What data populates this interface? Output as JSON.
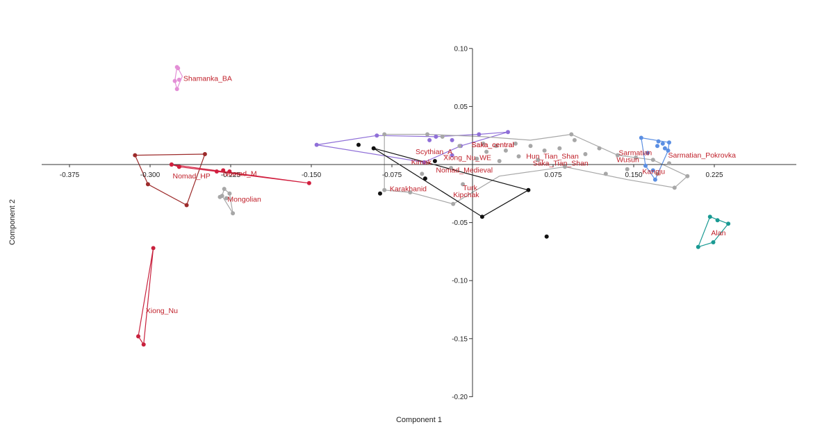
{
  "chart_data": {
    "type": "scatter",
    "xlabel": "Component 1",
    "ylabel": "Component 2",
    "xlim": [
      -0.39,
      0.3
    ],
    "ylim": [
      -0.205,
      0.105
    ],
    "x_ticks": [
      -0.375,
      -0.3,
      -0.225,
      -0.15,
      -0.075,
      0.075,
      0.15,
      0.225
    ],
    "x_tick_labels": [
      "-0.375",
      "-0.300",
      "-0.225",
      "-0.150",
      "-0.075",
      "0.075",
      "0.150",
      "0.225"
    ],
    "y_ticks": [
      0.1,
      0.05,
      -0.05,
      -0.1,
      -0.15,
      -0.2
    ],
    "y_tick_labels": [
      "0.10",
      "0.05",
      "-0.05",
      "-0.10",
      "-0.15",
      "-0.20"
    ],
    "grid": false,
    "legend": "none",
    "groups": [
      {
        "name": "Shamanka_BA",
        "color": "#e38fd6",
        "points": [
          [
            -0.275,
            0.084
          ],
          [
            -0.274,
            0.083
          ],
          [
            -0.277,
            0.072
          ],
          [
            -0.273,
            0.073
          ],
          [
            -0.275,
            0.065
          ]
        ],
        "hull": [
          [
            -0.275,
            0.084
          ],
          [
            -0.274,
            0.083
          ],
          [
            -0.27,
            0.076
          ],
          [
            -0.275,
            0.065
          ],
          [
            -0.277,
            0.072
          ]
        ],
        "label_pos": [
          -0.269,
          0.072
        ]
      },
      {
        "name": "Nomad_HP",
        "color": "#9c2a2a",
        "points": [
          [
            -0.314,
            0.008
          ],
          [
            -0.249,
            0.009
          ],
          [
            -0.302,
            -0.017
          ],
          [
            -0.266,
            -0.035
          ],
          [
            -0.28,
            0.0
          ],
          [
            -0.273,
            -0.002
          ]
        ],
        "hull": [
          [
            -0.314,
            0.008
          ],
          [
            -0.249,
            0.009
          ],
          [
            -0.266,
            -0.035
          ],
          [
            -0.302,
            -0.017
          ]
        ],
        "label_pos": [
          -0.279,
          -0.012
        ]
      },
      {
        "name": "Nomad_M",
        "color": "#d11f3f",
        "points": [
          [
            -0.28,
            0.0
          ],
          [
            -0.273,
            -0.002
          ],
          [
            -0.238,
            -0.006
          ],
          [
            -0.232,
            -0.005
          ],
          [
            -0.152,
            -0.016
          ],
          [
            -0.226,
            -0.006
          ]
        ],
        "hull": [
          [
            -0.28,
            0.0
          ],
          [
            -0.152,
            -0.016
          ],
          [
            -0.238,
            -0.006
          ],
          [
            -0.273,
            -0.002
          ]
        ],
        "label_pos": [
          -0.232,
          -0.01
        ]
      },
      {
        "name": "Mongolian",
        "color": "#a7a7a7",
        "points": [
          [
            -0.231,
            -0.021
          ],
          [
            -0.226,
            -0.025
          ],
          [
            -0.233,
            -0.027
          ],
          [
            -0.223,
            -0.042
          ],
          [
            -0.229,
            -0.029
          ],
          [
            -0.235,
            -0.028
          ]
        ],
        "hull": [
          [
            -0.231,
            -0.021
          ],
          [
            -0.226,
            -0.025
          ],
          [
            -0.223,
            -0.042
          ],
          [
            -0.233,
            -0.027
          ]
        ],
        "label_pos": [
          -0.228,
          -0.032
        ]
      },
      {
        "name": "Xiong_Nu",
        "color": "#c8213d",
        "points": [
          [
            -0.297,
            -0.072
          ],
          [
            -0.311,
            -0.148
          ],
          [
            -0.306,
            -0.155
          ]
        ],
        "hull": [
          [
            -0.297,
            -0.072
          ],
          [
            -0.306,
            -0.155
          ],
          [
            -0.311,
            -0.148
          ]
        ],
        "label_pos": [
          -0.304,
          -0.128
        ]
      },
      {
        "name": "Scythian_A",
        "color": "#8f6fd8",
        "points": [
          [
            -0.145,
            0.017
          ],
          [
            -0.089,
            0.025
          ],
          [
            -0.034,
            0.024
          ],
          [
            -0.019,
            0.021
          ],
          [
            0.006,
            0.026
          ],
          [
            0.033,
            0.028
          ],
          [
            -0.011,
            0.016
          ],
          [
            -0.04,
            0.021
          ],
          [
            -0.019,
            0.008
          ],
          [
            -0.045,
            0.002
          ]
        ],
        "hull": [
          [
            -0.145,
            0.017
          ],
          [
            -0.089,
            0.025
          ],
          [
            -0.034,
            0.024
          ],
          [
            0.006,
            0.026
          ],
          [
            0.033,
            0.028
          ],
          [
            -0.011,
            0.016
          ],
          [
            -0.045,
            0.002
          ]
        ],
        "label_pos": [
          -0.053,
          0.009
        ]
      },
      {
        "name": "Saka_central",
        "color": "#a7a7a7",
        "points": [
          [
            -0.082,
            0.026
          ],
          [
            -0.042,
            0.026
          ],
          [
            -0.028,
            0.024
          ],
          [
            -0.012,
            0.016
          ],
          [
            0.01,
            0.018
          ],
          [
            0.022,
            0.016
          ],
          [
            0.04,
            0.018
          ],
          [
            0.054,
            0.016
          ],
          [
            0.067,
            0.012
          ],
          [
            0.081,
            0.014
          ],
          [
            0.095,
            0.021
          ],
          [
            0.118,
            0.014
          ],
          [
            0.135,
            0.008
          ],
          [
            0.152,
            0.006
          ],
          [
            0.168,
            0.004
          ],
          [
            0.183,
            0.001
          ],
          [
            0.2,
            -0.01
          ],
          [
            0.188,
            -0.02
          ],
          [
            0.124,
            -0.008
          ],
          [
            0.086,
            -0.002
          ],
          [
            0.061,
            0.004
          ],
          [
            0.043,
            0.007
          ],
          [
            0.025,
            0.003
          ],
          [
            0.004,
            0.005
          ],
          [
            -0.02,
            -0.003
          ],
          [
            -0.047,
            -0.008
          ],
          [
            -0.082,
            -0.022
          ],
          [
            -0.058,
            -0.024
          ],
          [
            -0.018,
            -0.034
          ],
          [
            -0.009,
            -0.017
          ],
          [
            0.013,
            0.011
          ],
          [
            0.031,
            0.012
          ],
          [
            0.105,
            0.009
          ],
          [
            0.144,
            -0.004
          ],
          [
            0.172,
            -0.008
          ],
          [
            0.092,
            0.026
          ]
        ],
        "hull": [
          [
            -0.082,
            0.026
          ],
          [
            -0.042,
            0.026
          ],
          [
            0.01,
            0.024
          ],
          [
            0.054,
            0.021
          ],
          [
            0.092,
            0.026
          ],
          [
            0.135,
            0.008
          ],
          [
            0.168,
            0.004
          ],
          [
            0.2,
            -0.01
          ],
          [
            0.188,
            -0.02
          ],
          [
            0.144,
            -0.013
          ],
          [
            0.086,
            -0.002
          ],
          [
            0.025,
            -0.01
          ],
          [
            -0.018,
            -0.034
          ],
          [
            -0.058,
            -0.024
          ],
          [
            -0.082,
            -0.022
          ]
        ],
        "label_pos": [
          -0.001,
          0.015
        ]
      },
      {
        "name": "Sarmatian_Pokrovka",
        "color": "#5b8fe3",
        "points": [
          [
            0.157,
            0.023
          ],
          [
            0.173,
            0.02
          ],
          [
            0.177,
            0.018
          ],
          [
            0.183,
            0.019
          ],
          [
            0.182,
            0.012
          ],
          [
            0.172,
            0.016
          ],
          [
            0.179,
            0.014
          ],
          [
            0.163,
            0.01
          ],
          [
            0.168,
            -0.005
          ],
          [
            0.17,
            -0.013
          ],
          [
            0.161,
            -0.001
          ]
        ],
        "hull": [
          [
            0.157,
            0.023
          ],
          [
            0.183,
            0.019
          ],
          [
            0.182,
            0.012
          ],
          [
            0.17,
            -0.013
          ],
          [
            0.161,
            -0.001
          ]
        ],
        "label_pos": [
          0.182,
          0.006
        ]
      },
      {
        "name": "Alan",
        "color": "#199a93",
        "points": [
          [
            0.221,
            -0.045
          ],
          [
            0.238,
            -0.051
          ],
          [
            0.228,
            -0.048
          ],
          [
            0.224,
            -0.067
          ],
          [
            0.21,
            -0.071
          ]
        ],
        "hull": [
          [
            0.221,
            -0.045
          ],
          [
            0.238,
            -0.051
          ],
          [
            0.224,
            -0.067
          ],
          [
            0.21,
            -0.071
          ]
        ],
        "label_pos": [
          0.222,
          -0.061
        ]
      },
      {
        "name": "Kipchak",
        "color": "#111111",
        "points": [
          [
            -0.106,
            0.017
          ],
          [
            -0.092,
            0.014
          ],
          [
            -0.035,
            0.003
          ],
          [
            -0.044,
            -0.012
          ],
          [
            -0.086,
            -0.025
          ],
          [
            0.052,
            -0.022
          ],
          [
            0.009,
            -0.045
          ],
          [
            0.069,
            -0.062
          ]
        ],
        "hull": [
          [
            -0.092,
            0.014
          ],
          [
            0.052,
            -0.022
          ],
          [
            0.009,
            -0.045
          ]
        ],
        "label_pos": [
          -0.018,
          -0.028
        ]
      }
    ],
    "annotations": [
      {
        "text": "Kimak",
        "pos": [
          -0.057,
          0.0
        ]
      },
      {
        "text": "Xiong_Nu_WE",
        "pos": [
          -0.027,
          0.004
        ]
      },
      {
        "text": "Saka_central",
        "pos": [
          -0.001,
          0.015
        ]
      },
      {
        "text": "Nomad_Medieval",
        "pos": [
          -0.034,
          -0.007
        ]
      },
      {
        "text": "Karakhanid",
        "pos": [
          -0.077,
          -0.023
        ]
      },
      {
        "text": "Turk",
        "pos": [
          -0.009,
          -0.022
        ]
      },
      {
        "text": "Hun_Tian_Shan",
        "pos": [
          0.05,
          0.005
        ]
      },
      {
        "text": "Saka_Tian_Shan",
        "pos": [
          0.056,
          -0.001
        ]
      },
      {
        "text": "Sarmatian",
        "pos": [
          0.136,
          0.008
        ]
      },
      {
        "text": "Wusun",
        "pos": [
          0.134,
          0.002
        ]
      },
      {
        "text": "Kangju",
        "pos": [
          0.158,
          -0.008
        ]
      }
    ]
  }
}
